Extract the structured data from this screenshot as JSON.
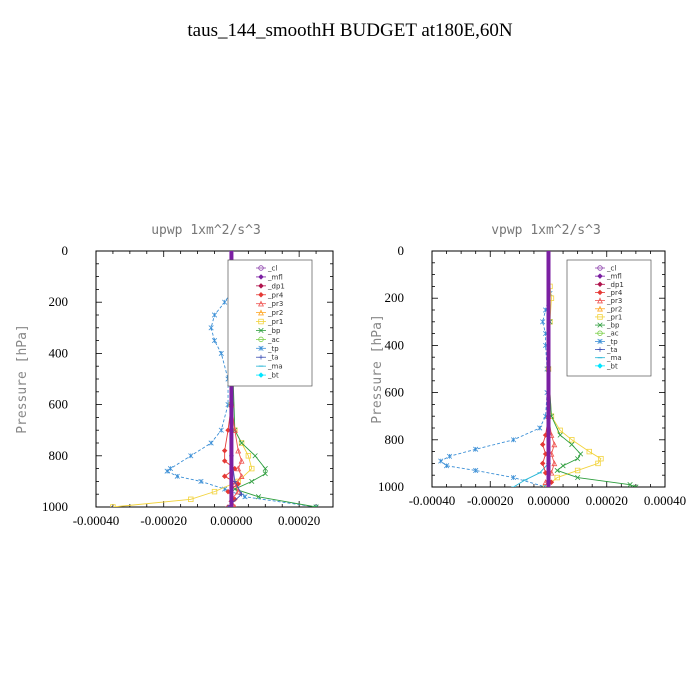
{
  "title": "taus_144_smoothH  BUDGET at180E,60N",
  "legend": [
    {
      "name": "_cl",
      "color": "#8e44ad",
      "marker": "circle"
    },
    {
      "name": "_mfl",
      "color": "#7b1fa2",
      "marker": "diamond"
    },
    {
      "name": "_dp1",
      "color": "#b0134d",
      "marker": "diamond"
    },
    {
      "name": "_pr4",
      "color": "#e53935",
      "marker": "diamond"
    },
    {
      "name": "_pr3",
      "color": "#ef5350",
      "marker": "triangle"
    },
    {
      "name": "_pr2",
      "color": "#ffa726",
      "marker": "triangle"
    },
    {
      "name": "_pr1",
      "color": "#f2d33c",
      "marker": "square"
    },
    {
      "name": "_bp",
      "color": "#2e9e3e",
      "marker": "x"
    },
    {
      "name": "_ac",
      "color": "#7ccf4a",
      "marker": "circle"
    },
    {
      "name": "_tp",
      "color": "#3b8fd6",
      "marker": "star"
    },
    {
      "name": "_ta",
      "color": "#3f51b5",
      "marker": "plus"
    },
    {
      "name": "_ma",
      "color": "#29b6d6",
      "marker": "dash"
    },
    {
      "name": "_bt",
      "color": "#00e5ff",
      "marker": "diamond"
    }
  ],
  "chart_data": [
    {
      "type": "line",
      "title": "upwp   1xm^2/s^3",
      "ylabel": "Pressure [hPa]",
      "xlabel": "",
      "xlim": [
        -0.0004,
        0.0003
      ],
      "ylim": [
        1000,
        0
      ],
      "x_ticks": [
        "-0.00040",
        "-0.00020",
        "0.00000",
        "0.00020"
      ],
      "x_tick_values": [
        -0.0004,
        -0.0002,
        0,
        0.0002
      ],
      "y_ticks": [
        "0",
        "200",
        "400",
        "600",
        "800",
        "1000"
      ],
      "y_tick_values": [
        0,
        200,
        400,
        600,
        800,
        1000
      ],
      "legend_position": "top-right",
      "series": [
        {
          "name": "_tp",
          "p": [
            150,
            200,
            250,
            300,
            350,
            400,
            500,
            600,
            700,
            750,
            800,
            850,
            860,
            880,
            900,
            930,
            960,
            1000
          ],
          "x": [
            5e-06,
            -2e-05,
            -5e-05,
            -6e-05,
            -5e-05,
            -3e-05,
            -1e-05,
            -1e-05,
            -3e-05,
            -6e-05,
            -0.00012,
            -0.00018,
            -0.00019,
            -0.00016,
            -9e-05,
            -2e-05,
            4e-05,
            0.00025
          ]
        },
        {
          "name": "_pr1",
          "p": [
            150,
            200,
            300,
            400,
            600,
            700,
            750,
            800,
            850,
            900,
            940,
            970,
            1000
          ],
          "x": [
            1e-05,
            1e-05,
            1e-05,
            5e-06,
            0.0,
            1e-05,
            3e-05,
            5e-05,
            6e-05,
            2e-05,
            -5e-05,
            -0.00012,
            -0.00035
          ]
        },
        {
          "name": "_bp",
          "p": [
            150,
            300,
            500,
            700,
            750,
            800,
            850,
            870,
            900,
            930,
            960,
            1000
          ],
          "x": [
            1e-05,
            1e-05,
            5e-06,
            1e-05,
            3e-05,
            7e-05,
            0.0001,
            0.0001,
            6e-05,
            1e-05,
            8e-05,
            0.00025
          ]
        },
        {
          "name": "_pr4",
          "p": [
            600,
            700,
            780,
            820,
            850,
            880,
            910,
            940,
            970,
            1000
          ],
          "x": [
            0.0,
            -1e-05,
            -2e-05,
            -2e-05,
            1e-05,
            -2e-05,
            2e-05,
            -1e-05,
            1e-05,
            -1e-05
          ]
        },
        {
          "name": "_pr3",
          "p": [
            600,
            700,
            780,
            820,
            850,
            880,
            910,
            940,
            970,
            1000
          ],
          "x": [
            0.0,
            1e-05,
            2e-05,
            3e-05,
            2e-05,
            3e-05,
            1e-05,
            2e-05,
            0.0,
            1e-05
          ]
        },
        {
          "name": "_ta",
          "p": [
            0,
            200,
            400,
            600,
            800,
            900,
            950,
            1000
          ],
          "x": [
            0.0,
            0.0,
            0.0,
            0.0,
            0.0,
            1e-05,
            3e-05,
            -1e-05
          ]
        },
        {
          "name": "_mfl",
          "p": [
            0,
            200,
            400,
            600,
            800,
            1000
          ],
          "x": [
            0.0,
            0.0,
            0.0,
            0.0,
            0.0,
            0.0
          ]
        }
      ]
    },
    {
      "type": "line",
      "title": "vpwp   1xm^2/s^3",
      "ylabel": "Pressure [hPa]",
      "xlabel": "",
      "xlim": [
        -0.0004,
        0.0004
      ],
      "ylim": [
        1000,
        0
      ],
      "x_ticks": [
        "-0.00040",
        "-0.00020",
        "0.00000",
        "0.00020",
        "0.00040"
      ],
      "x_tick_values": [
        -0.0004,
        -0.0002,
        0,
        0.0002,
        0.0004
      ],
      "y_ticks": [
        "0",
        "200",
        "400",
        "600",
        "800",
        "1000"
      ],
      "y_tick_values": [
        0,
        200,
        400,
        600,
        800,
        1000
      ],
      "legend_position": "top-right",
      "series": [
        {
          "name": "_tp",
          "p": [
            180,
            250,
            300,
            350,
            400,
            500,
            600,
            700,
            750,
            800,
            840,
            870,
            890,
            910,
            930,
            960,
            1000
          ],
          "x": [
            5e-06,
            -1e-05,
            -2e-05,
            -1e-05,
            -1e-05,
            -5e-06,
            -5e-06,
            -1e-05,
            -3e-05,
            -0.00012,
            -0.00025,
            -0.00034,
            -0.00037,
            -0.00035,
            -0.00025,
            -0.00012,
            -1e-05
          ]
        },
        {
          "name": "_pr1",
          "p": [
            150,
            200,
            300,
            500,
            700,
            760,
            800,
            850,
            880,
            900,
            930,
            960,
            1000
          ],
          "x": [
            5e-06,
            1e-05,
            5e-06,
            0.0,
            1e-05,
            4e-05,
            8e-05,
            0.00014,
            0.00018,
            0.00017,
            0.0001,
            3e-05,
            -1e-05
          ]
        },
        {
          "name": "_bp",
          "p": [
            300,
            500,
            700,
            780,
            820,
            860,
            880,
            910,
            930,
            960,
            990,
            1000
          ],
          "x": [
            5e-06,
            0.0,
            1e-05,
            4e-05,
            8e-05,
            0.00011,
            0.0001,
            5e-05,
            3e-05,
            0.0001,
            0.00028,
            0.0003
          ]
        },
        {
          "name": "_ma",
          "p": [
            900,
            940,
            970,
            1000
          ],
          "x": [
            0.0,
            -3e-05,
            -8e-05,
            -0.00012
          ]
        },
        {
          "name": "_pr4",
          "p": [
            700,
            780,
            820,
            860,
            900,
            940,
            980,
            1000
          ],
          "x": [
            0.0,
            -1e-05,
            -2e-05,
            -1e-05,
            -2e-05,
            -1e-05,
            1e-05,
            0.0
          ]
        },
        {
          "name": "_pr3",
          "p": [
            700,
            780,
            820,
            860,
            900,
            940,
            980,
            1000
          ],
          "x": [
            0.0,
            1e-05,
            2e-05,
            1e-05,
            2e-05,
            1e-05,
            -1e-05,
            0.0
          ]
        },
        {
          "name": "_mfl",
          "p": [
            0,
            200,
            400,
            600,
            800,
            1000
          ],
          "x": [
            0.0,
            0.0,
            0.0,
            0.0,
            0.0,
            0.0
          ]
        }
      ]
    }
  ]
}
